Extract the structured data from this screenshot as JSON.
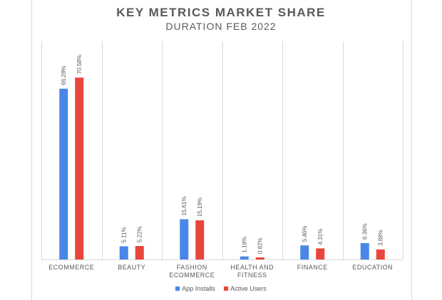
{
  "chart_data": {
    "type": "bar",
    "title": "KEY METRICS MARKET SHARE",
    "subtitle": "DURATION FEB 2022",
    "categories": [
      "ECOMMERCE",
      "BEAUTY",
      "FASHION ECOMMERCE",
      "HEALTH AND FITNESS",
      "FINANCE",
      "EDUCATION"
    ],
    "category_lines": [
      [
        "ECOMMERCE"
      ],
      [
        "BEAUTY"
      ],
      [
        "FASHION",
        "ECOMMERCE"
      ],
      [
        "HEALTH AND",
        "FITNESS"
      ],
      [
        "FINANCE"
      ],
      [
        "EDUCATION"
      ]
    ],
    "series": [
      {
        "name": "App Installs",
        "color": "#4a86e8",
        "values": [
          66.28,
          5.11,
          15.61,
          1.19,
          5.46,
          6.36
        ],
        "labels": [
          "66.28%",
          "5.11%",
          "15.61%",
          "1.19%",
          "5.46%",
          "6.36%"
        ]
      },
      {
        "name": "Active Users",
        "color": "#e8453c",
        "values": [
          70.58,
          5.22,
          15.19,
          0.82,
          4.31,
          3.88
        ],
        "labels": [
          "70.58%",
          "5.22%",
          "15.19%",
          "0.82%",
          "4.31%",
          "3.88%"
        ]
      }
    ],
    "ylim": [
      0,
      80
    ],
    "xlabel": "",
    "ylabel": "",
    "grid": "vertical separators",
    "legend_position": "bottom"
  }
}
